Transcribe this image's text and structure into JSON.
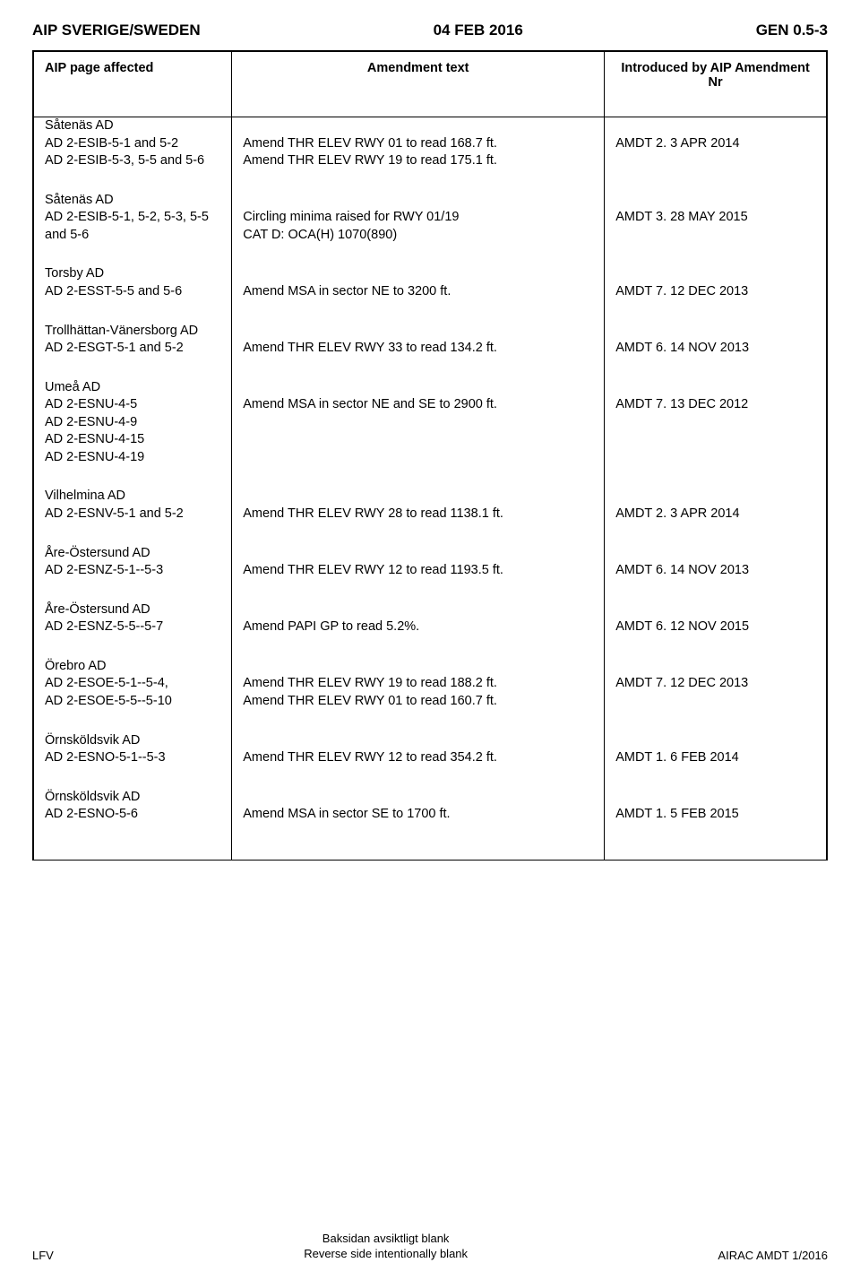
{
  "header": {
    "left": "AIP SVERIGE/SWEDEN",
    "center": "04 FEB 2016",
    "right": "GEN 0.5-3"
  },
  "columns": {
    "c0": "AIP page affected",
    "c1": "Amendment text",
    "c2": "Introduced by AIP Amendment Nr"
  },
  "rows": [
    {
      "a0": "Såtenäs AD",
      "a1": "AD 2-ESIB-5-1 and 5-2",
      "a2": "AD 2-ESIB-5-3, 5-5 and 5-6",
      "b1": "Amend THR ELEV RWY 01 to read 168.7 ft.",
      "b2": "Amend THR ELEV RWY 19 to read 175.1 ft.",
      "c0": "AMDT 2. 3 APR 2014"
    },
    {
      "a0": "Såtenäs AD",
      "a1": "AD 2-ESIB-5-1, 5-2, 5-3, 5-5 and 5-6",
      "b0": "Circling minima raised for RWY 01/19",
      "b1": "CAT D: OCA(H) 1070(890)",
      "c0": "AMDT 3. 28 MAY 2015"
    },
    {
      "a0": "Torsby AD",
      "a1": "AD 2-ESST-5-5 and 5-6",
      "b0": "Amend MSA in sector NE to 3200 ft.",
      "c0": "AMDT 7. 12 DEC 2013"
    },
    {
      "a0": "Trollhättan-Vänersborg AD",
      "a1": "AD 2-ESGT-5-1 and 5-2",
      "b0": "Amend THR ELEV RWY 33 to read 134.2 ft.",
      "c0": "AMDT 6. 14 NOV 2013"
    },
    {
      "a0": "Umeå AD",
      "a1": "AD 2-ESNU-4-5",
      "a2": "AD 2-ESNU-4-9",
      "a3": "AD 2-ESNU-4-15",
      "a4": "AD 2-ESNU-4-19",
      "b0": "Amend MSA in sector NE and SE to 2900 ft.",
      "c0": "AMDT 7. 13 DEC 2012"
    },
    {
      "a0": "Vilhelmina AD",
      "a1": "AD 2-ESNV-5-1 and 5-2",
      "b0": "Amend THR ELEV RWY 28 to read 1138.1 ft.",
      "c0": "AMDT 2. 3 APR 2014"
    },
    {
      "a0": "Åre-Östersund AD",
      "a1": "AD 2-ESNZ-5-1--5-3",
      "b0": "Amend THR ELEV RWY 12 to read 1193.5 ft.",
      "c0": "AMDT 6. 14 NOV 2013"
    },
    {
      "a0": "Åre-Östersund AD",
      "a1": "AD 2-ESNZ-5-5--5-7",
      "b0": "Amend PAPI GP to read 5.2%.",
      "c0": "AMDT 6. 12 NOV 2015"
    },
    {
      "a0": "Örebro AD",
      "a1": "AD 2-ESOE-5-1--5-4,",
      "a2": "AD 2-ESOE-5-5--5-10",
      "b1": "Amend THR ELEV RWY 19 to read 188.2 ft.",
      "b2": "Amend THR ELEV RWY 01 to read 160.7 ft.",
      "c0": "AMDT 7. 12 DEC 2013"
    },
    {
      "a0": "Örnsköldsvik AD",
      "a1": "AD 2-ESNO-5-1--5-3",
      "b0": "Amend THR ELEV RWY 12 to read 354.2 ft.",
      "c0": "AMDT 1. 6 FEB 2014"
    },
    {
      "a0": "Örnsköldsvik AD",
      "a1": "AD 2-ESNO-5-6",
      "b0": "Amend MSA in sector SE to 1700 ft.",
      "c0": "AMDT 1. 5 FEB 2015"
    }
  ],
  "footer": {
    "left": "LFV",
    "center1": "Baksidan avsiktligt blank",
    "center2": "Reverse side intentionally blank",
    "right": "AIRAC AMDT 1/2016"
  }
}
